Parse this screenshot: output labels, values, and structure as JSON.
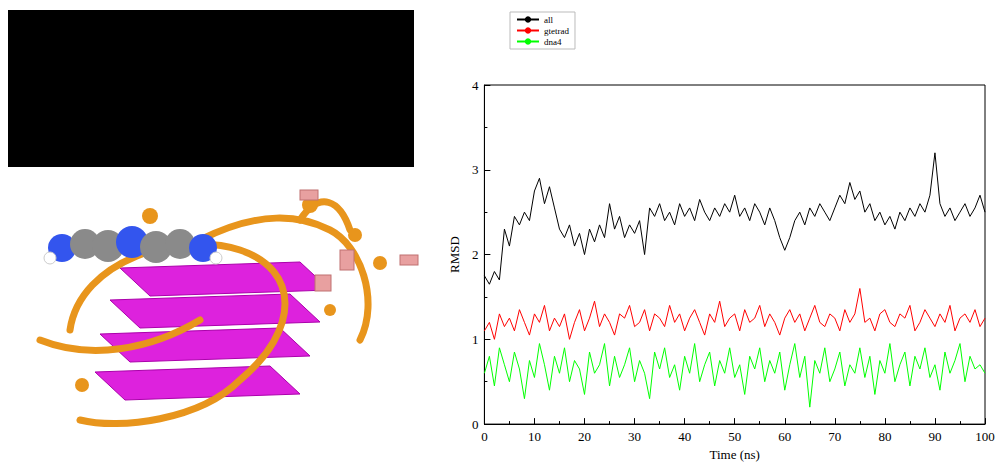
{
  "chart_data": {
    "type": "line",
    "xlabel": "Time (ns)",
    "ylabel": "RMSD",
    "xlim": [
      0,
      100
    ],
    "ylim": [
      0,
      4
    ],
    "xticks": [
      0,
      10,
      20,
      30,
      40,
      50,
      60,
      70,
      80,
      90,
      100
    ],
    "yticks": [
      0,
      1,
      2,
      3,
      4
    ],
    "grid": false,
    "legend": "top-left",
    "x": [
      0,
      1,
      2,
      3,
      4,
      5,
      6,
      7,
      8,
      9,
      10,
      11,
      12,
      13,
      14,
      15,
      16,
      17,
      18,
      19,
      20,
      21,
      22,
      23,
      24,
      25,
      26,
      27,
      28,
      29,
      30,
      31,
      32,
      33,
      34,
      35,
      36,
      37,
      38,
      39,
      40,
      41,
      42,
      43,
      44,
      45,
      46,
      47,
      48,
      49,
      50,
      51,
      52,
      53,
      54,
      55,
      56,
      57,
      58,
      59,
      60,
      61,
      62,
      63,
      64,
      65,
      66,
      67,
      68,
      69,
      70,
      71,
      72,
      73,
      74,
      75,
      76,
      77,
      78,
      79,
      80,
      81,
      82,
      83,
      84,
      85,
      86,
      87,
      88,
      89,
      90,
      91,
      92,
      93,
      94,
      95,
      96,
      97,
      98,
      99,
      100
    ],
    "series": [
      {
        "name": "all",
        "color": "#000000",
        "values": [
          1.75,
          1.65,
          1.8,
          1.7,
          2.3,
          2.1,
          2.45,
          2.35,
          2.5,
          2.4,
          2.75,
          2.9,
          2.6,
          2.8,
          2.55,
          2.3,
          2.2,
          2.35,
          2.1,
          2.25,
          2.0,
          2.3,
          2.15,
          2.35,
          2.2,
          2.6,
          2.3,
          2.45,
          2.2,
          2.35,
          2.25,
          2.4,
          2.0,
          2.55,
          2.45,
          2.6,
          2.4,
          2.5,
          2.35,
          2.6,
          2.45,
          2.55,
          2.4,
          2.65,
          2.5,
          2.4,
          2.55,
          2.45,
          2.6,
          2.5,
          2.7,
          2.45,
          2.55,
          2.4,
          2.6,
          2.5,
          2.35,
          2.55,
          2.4,
          2.2,
          2.05,
          2.2,
          2.4,
          2.5,
          2.35,
          2.55,
          2.45,
          2.6,
          2.5,
          2.4,
          2.55,
          2.7,
          2.6,
          2.85,
          2.65,
          2.75,
          2.5,
          2.6,
          2.4,
          2.5,
          2.35,
          2.45,
          2.3,
          2.5,
          2.4,
          2.55,
          2.45,
          2.6,
          2.5,
          2.7,
          3.2,
          2.6,
          2.45,
          2.55,
          2.4,
          2.5,
          2.6,
          2.45,
          2.55,
          2.7,
          2.5
        ]
      },
      {
        "name": "gtetrad",
        "color": "#ff0000",
        "values": [
          1.1,
          1.2,
          1.0,
          1.3,
          1.15,
          1.25,
          1.1,
          1.35,
          1.2,
          1.05,
          1.3,
          1.2,
          1.4,
          1.1,
          1.25,
          1.15,
          1.3,
          1.0,
          1.2,
          1.35,
          1.1,
          1.25,
          1.45,
          1.15,
          1.3,
          1.2,
          1.05,
          1.3,
          1.25,
          1.4,
          1.15,
          1.2,
          1.35,
          1.1,
          1.3,
          1.25,
          1.15,
          1.4,
          1.2,
          1.3,
          1.1,
          1.25,
          1.35,
          1.2,
          1.05,
          1.3,
          1.2,
          1.45,
          1.15,
          1.25,
          1.3,
          1.1,
          1.35,
          1.2,
          1.25,
          1.4,
          1.15,
          1.3,
          1.2,
          1.05,
          1.25,
          1.35,
          1.2,
          1.3,
          1.1,
          1.25,
          1.4,
          1.2,
          1.15,
          1.3,
          1.25,
          1.1,
          1.35,
          1.2,
          1.3,
          1.6,
          1.2,
          1.25,
          1.1,
          1.3,
          1.35,
          1.2,
          1.15,
          1.3,
          1.25,
          1.4,
          1.1,
          1.2,
          1.35,
          1.25,
          1.15,
          1.3,
          1.2,
          1.4,
          1.1,
          1.25,
          1.3,
          1.2,
          1.35,
          1.15,
          1.25
        ]
      },
      {
        "name": "dna4",
        "color": "#00ff00",
        "values": [
          0.6,
          0.8,
          0.45,
          0.9,
          0.7,
          0.5,
          0.85,
          0.65,
          0.3,
          0.75,
          0.55,
          0.95,
          0.7,
          0.4,
          0.8,
          0.6,
          0.9,
          0.5,
          0.75,
          0.65,
          0.35,
          0.85,
          0.6,
          0.7,
          0.95,
          0.45,
          0.8,
          0.55,
          0.7,
          0.9,
          0.5,
          0.75,
          0.6,
          0.3,
          0.85,
          0.65,
          0.9,
          0.55,
          0.7,
          0.4,
          0.8,
          0.6,
          0.95,
          0.5,
          0.7,
          0.85,
          0.45,
          0.75,
          0.6,
          0.9,
          0.55,
          0.7,
          0.35,
          0.8,
          0.65,
          0.9,
          0.5,
          0.75,
          0.6,
          0.85,
          0.4,
          0.7,
          0.95,
          0.55,
          0.8,
          0.2,
          0.75,
          0.6,
          0.9,
          0.5,
          0.65,
          0.85,
          0.45,
          0.7,
          0.6,
          0.9,
          0.55,
          0.8,
          0.35,
          0.75,
          0.6,
          0.95,
          0.5,
          0.7,
          0.85,
          0.45,
          0.8,
          0.65,
          0.9,
          0.55,
          0.7,
          0.4,
          0.85,
          0.6,
          0.75,
          0.95,
          0.5,
          0.8,
          0.65,
          0.7,
          0.6
        ]
      }
    ]
  }
}
